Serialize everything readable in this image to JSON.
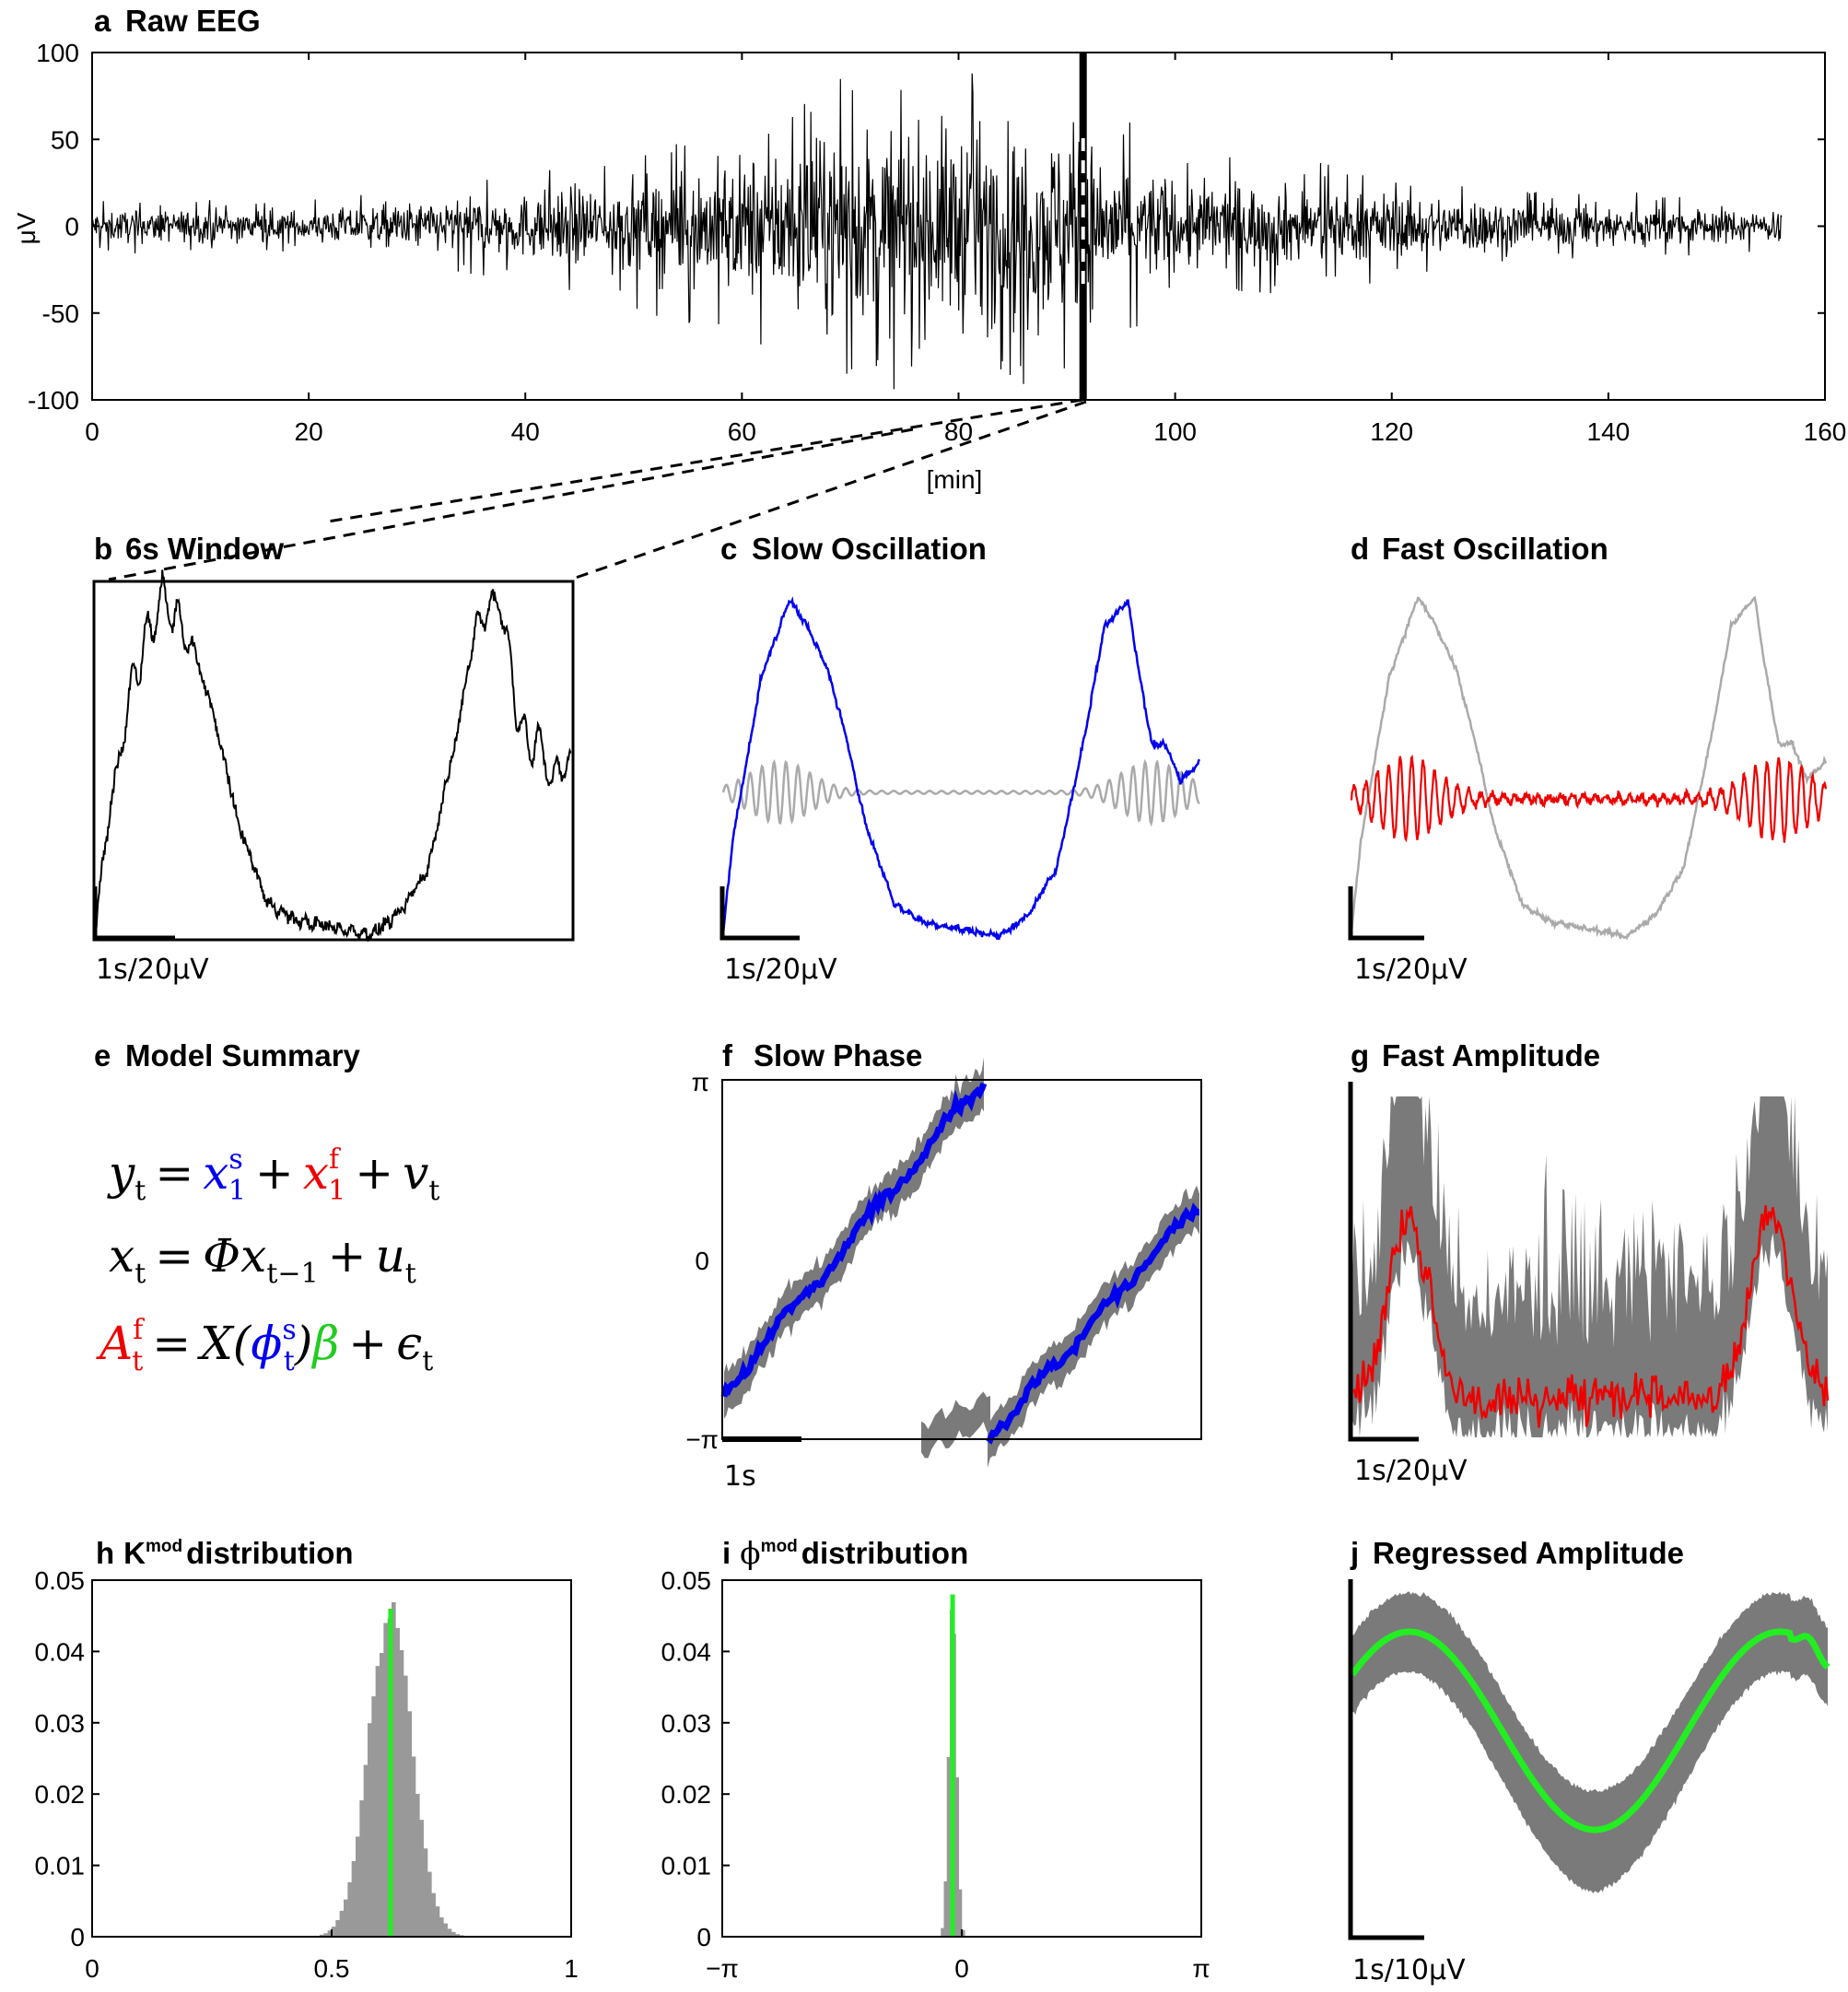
{
  "figure": {
    "panels": {
      "a": {
        "letter": "a",
        "title": "Raw EEG",
        "ylabel": "μV",
        "xlabel": "[min]"
      },
      "b": {
        "letter": "b",
        "title": "6s Window",
        "scalebar": "1s/20μV"
      },
      "c": {
        "letter": "c",
        "title": "Slow Oscillation",
        "scalebar": "1s/20μV"
      },
      "d": {
        "letter": "d",
        "title": "Fast Oscillation",
        "scalebar": "1s/20μV"
      },
      "e": {
        "letter": "e",
        "title": "Model Summary"
      },
      "f": {
        "letter": "f",
        "title": "Slow Phase",
        "scalebar": "1s"
      },
      "g": {
        "letter": "g",
        "title": "Fast Amplitude",
        "scalebar": "1s/20μV"
      },
      "h": {
        "letter": "h",
        "title_main": "K",
        "title_sup": "mod",
        "title_rest": "distribution"
      },
      "i": {
        "letter": "i",
        "title_main": "ϕ",
        "title_sup": "mod",
        "title_rest": "distribution"
      },
      "j": {
        "letter": "j",
        "title": "Regressed Amplitude",
        "scalebar": "1s/10μV"
      }
    },
    "equations": {
      "eq1": {
        "y": "y",
        "y_sub": "t",
        "eq": "=",
        "x1": "x",
        "x1_sup": "s",
        "x1_sub": "1",
        "plus": "+",
        "x2": "x",
        "x2_sup": "f",
        "x2_sub": "1",
        "plus2": "+",
        "v": "v",
        "v_sub": "t"
      },
      "eq2": {
        "x": "x",
        "x_sub": "t",
        "eq": "=",
        "phi": "Φx",
        "phi_sub": "t−1",
        "plus": "+",
        "u": "u",
        "u_sub": "t"
      },
      "eq3": {
        "A": "A",
        "A_sup": "f",
        "A_sub": "t",
        "eq": "=",
        "X": "X(",
        "ph": "ϕ",
        "ph_sup": "s",
        "ph_sub": "t",
        "close": ")",
        "beta": "β",
        "plus": "+",
        "eps": "ϵ",
        "eps_sub": "t"
      }
    },
    "colors": {
      "black": "#000000",
      "slow": "#0000ee",
      "fast": "#ee0000",
      "gray": "#aaaaaa",
      "band": "#7a7a7a",
      "green": "#22ee22",
      "hist": "#999999"
    }
  },
  "chart_data": [
    {
      "id": "a",
      "type": "line",
      "title": "Raw EEG",
      "xlabel": "[min]",
      "ylabel": "μV",
      "xlim": [
        0,
        160
      ],
      "ylim": [
        -100,
        100
      ],
      "xticks": [
        "0",
        "20",
        "40",
        "60",
        "80",
        "100",
        "120",
        "140",
        "160"
      ],
      "yticks": [
        "-100",
        "-50",
        "0",
        "50",
        "100"
      ],
      "series": [
        {
          "x": [
            0,
            20,
            40,
            50,
            60,
            70,
            80,
            90,
            95,
            100,
            120,
            140,
            156
          ],
          "y_envelope": [
            15,
            15,
            30,
            45,
            65,
            90,
            95,
            90,
            60,
            45,
            30,
            20,
            15
          ]
        }
      ],
      "marker_x": 91.5
    },
    {
      "id": "h",
      "type": "bar",
      "title": "Kmod distribution",
      "xlim": [
        0,
        1
      ],
      "ylim": [
        0,
        0.05
      ],
      "xticks": [
        "0",
        "0.5",
        "1"
      ],
      "yticks": [
        "0",
        "0.01",
        "0.02",
        "0.03",
        "0.04",
        "0.05"
      ],
      "mean": 0.623,
      "peak": 0.046,
      "sd": 0.045
    },
    {
      "id": "i",
      "type": "bar",
      "title": "ϕmod distribution",
      "xlim": [
        -3.14159,
        3.14159
      ],
      "ylim": [
        0,
        0.05
      ],
      "xticks": [
        "−π",
        "0",
        "π"
      ],
      "yticks": [
        "0",
        "0.01",
        "0.02",
        "0.03",
        "0.04",
        "0.05"
      ],
      "mean": -0.12,
      "peak": 0.048,
      "sd": 0.05
    },
    {
      "id": "f",
      "type": "line",
      "title": "Slow Phase",
      "ylim": [
        -3.14159,
        3.14159
      ],
      "yticks": [
        "π",
        "0",
        "−π"
      ]
    }
  ]
}
